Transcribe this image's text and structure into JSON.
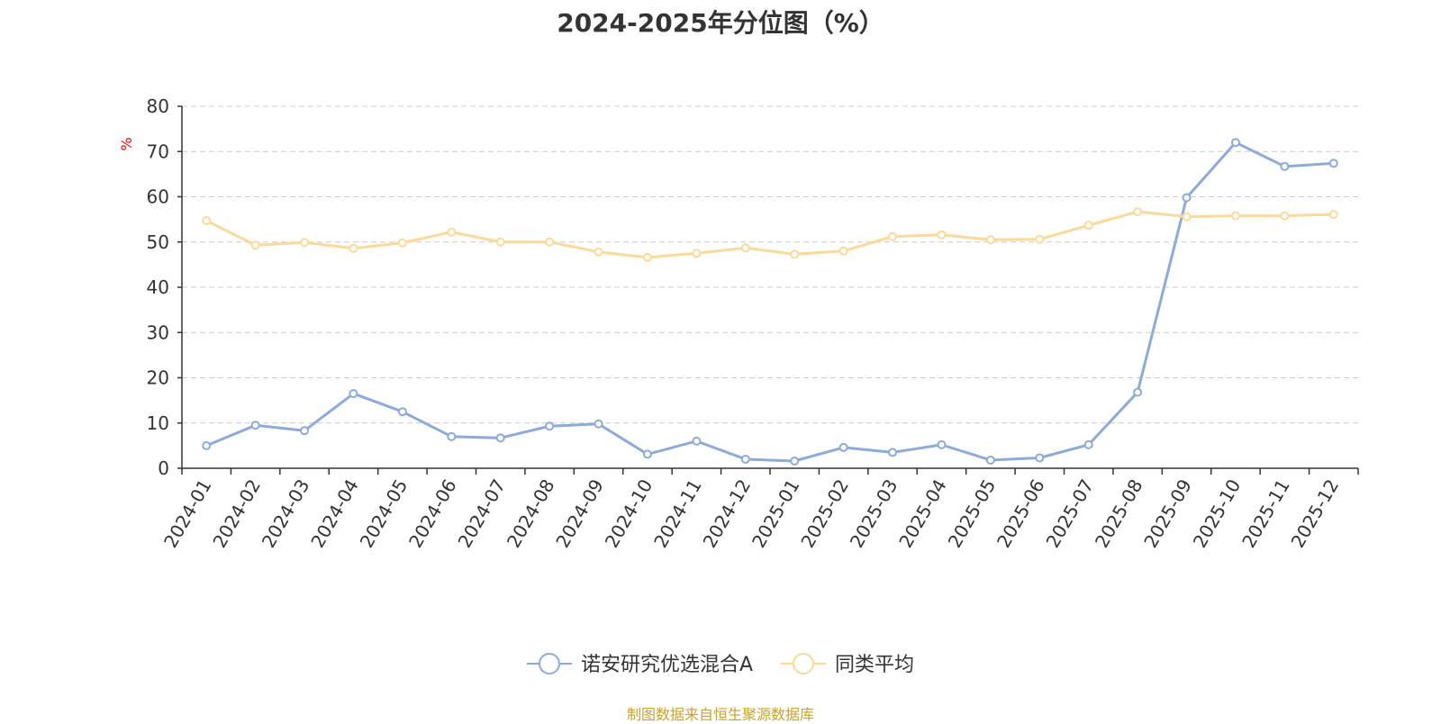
{
  "chart_data": {
    "type": "line",
    "title": "2024-2025年分位图（%）",
    "ylabel": "%",
    "xlabel": "",
    "ylim": [
      0,
      80
    ],
    "yticks": [
      0,
      10,
      20,
      30,
      40,
      50,
      60,
      70,
      80
    ],
    "grid": true,
    "legend_position": "bottom",
    "categories": [
      "2024-01",
      "2024-02",
      "2024-03",
      "2024-04",
      "2024-05",
      "2024-06",
      "2024-07",
      "2024-08",
      "2024-09",
      "2024-10",
      "2024-11",
      "2024-12",
      "2025-01",
      "2025-02",
      "2025-03",
      "2025-04",
      "2025-05",
      "2025-06",
      "2025-07",
      "2025-08",
      "2025-09",
      "2025-10",
      "2025-11",
      "2025-12"
    ],
    "series": [
      {
        "name": "诺安研究优选混合A",
        "color": "#8eaad8",
        "values": [
          5.0,
          9.5,
          8.3,
          16.5,
          12.5,
          7.0,
          6.7,
          9.3,
          9.8,
          3.1,
          6.0,
          2.0,
          1.6,
          4.6,
          3.5,
          5.2,
          1.8,
          2.3,
          5.2,
          16.8,
          59.8,
          72.0,
          66.7,
          67.4
        ]
      },
      {
        "name": "同类平均",
        "color": "#fbd99a",
        "values": [
          54.7,
          49.3,
          49.9,
          48.6,
          49.8,
          52.2,
          50.0,
          50.0,
          47.8,
          46.6,
          47.5,
          48.7,
          47.3,
          48.0,
          51.2,
          51.6,
          50.5,
          50.6,
          53.7,
          56.7,
          55.6,
          55.8,
          55.8,
          56.1
        ]
      }
    ]
  },
  "footer": {
    "source": "制图数据来自恒生聚源数据库"
  },
  "colors": {
    "axis": "#333333",
    "grid": "#cccccc",
    "ylabel": "#ff0000",
    "text": "#333333"
  }
}
